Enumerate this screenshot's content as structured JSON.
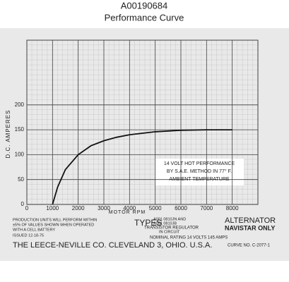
{
  "chart_data": {
    "type": "line",
    "title": "A00190684",
    "subtitle": "Performance Curve",
    "x_label": "MOTOR RPM",
    "y_label": "D.C. AMPERES",
    "x": [
      1000,
      1200,
      1500,
      2000,
      2500,
      3000,
      3500,
      4000,
      5000,
      6000,
      7000,
      8000
    ],
    "series": [
      {
        "name": "14 VOLT HOT PERFORMANCE",
        "color": "#111111",
        "values": [
          0,
          35,
          70,
          100,
          118,
          128,
          135,
          140,
          146,
          149,
          150,
          150
        ]
      }
    ],
    "xlim": [
      0,
      9000
    ],
    "xticks": [
      0,
      1000,
      2000,
      3000,
      4000,
      5000,
      6000,
      7000,
      8000
    ],
    "ylim": [
      0,
      330
    ],
    "yticks": [
      0,
      50,
      100,
      150,
      200
    ],
    "grid": true,
    "annotation": [
      "14 VOLT HOT PERFORMANCE",
      "BY S.A.E. METHOD IN 77° F.",
      "AMBIENT TEMPERATURE"
    ],
    "notes": [
      "PRODUCTION UNITS WILL PERFORM WITHIN",
      "±5% OF VALUES SHOWN WHEN OPERATED",
      "WITH A CELL BATTERY",
      "ISSUED 12-18-75",
      "TYPES",
      "A001 0810JN AND",
      "A001 0810JB",
      "TRANSISTOR REGULATOR",
      "IN CIRCUIT",
      "ALTERNATOR",
      "NAVISTAR ONLY",
      "NOMINAL RATING   14 VOLTS   145 AMPS",
      "THE LEECE-NEVILLE CO. CLEVELAND 3, OHIO. U.S.A.",
      "CURVE NO. C-2077-1"
    ]
  }
}
